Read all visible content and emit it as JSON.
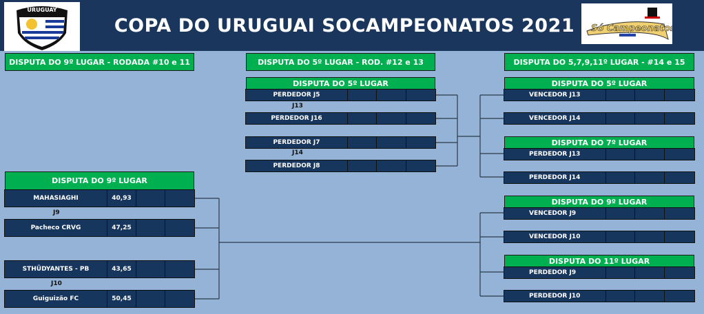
{
  "header": {
    "title": "COPA DO URUGUAI SOCAMPEONATOS 2021",
    "logo_left_text": "URUGUAY",
    "logo_right_text": "Só Campeonatos"
  },
  "sections": {
    "left": "DISPUTA DO 9º LUGAR - RODADA #10 e 11",
    "middle": "DISPUTA DO 5º LUGAR - ROD. #12 e 13",
    "right": "DISPUTA DO 5,7,9,11º LUGAR - #14 e 15"
  },
  "left_bracket": {
    "title": "DISPUTA DO 9º LUGAR",
    "games": [
      {
        "label": "J9",
        "teams": [
          {
            "name": "MAHASIAGHI",
            "score": "40,93"
          },
          {
            "name": "Pacheco CRVG",
            "score": "47,25"
          }
        ]
      },
      {
        "label": "J10",
        "teams": [
          {
            "name": "STHÜDYANTES - PB",
            "score": "43,65"
          },
          {
            "name": "Guiguizão FC",
            "score": "50,45"
          }
        ]
      }
    ]
  },
  "middle_bracket": {
    "title": "DISPUTA DO 5º LUGAR",
    "games": [
      {
        "label": "J13",
        "teams": [
          {
            "name": "PERDEDOR J5",
            "score": ""
          },
          {
            "name": "PERDEDOR J16",
            "score": ""
          }
        ]
      },
      {
        "label": "J14",
        "teams": [
          {
            "name": "PERDEDOR J7",
            "score": ""
          },
          {
            "name": "PERDEDOR J8",
            "score": ""
          }
        ]
      }
    ]
  },
  "right_bracket": [
    {
      "title": "DISPUTA DO 5º LUGAR",
      "teams": [
        "VENCEDOR J13",
        "VENCEDOR J14"
      ]
    },
    {
      "title": "DISPUTA DO 7º LUGAR",
      "teams": [
        "PERDEDOR J13",
        "PERDEDOR J14"
      ]
    },
    {
      "title": "DISPUTA DO 9º LUGAR",
      "teams": [
        "VENCEDOR J9",
        "VENCEDOR J10"
      ]
    },
    {
      "title": "DISPUTA DO 11º LUGAR",
      "teams": [
        "PERDEDOR J9",
        "PERDEDOR J10"
      ]
    }
  ],
  "colors": {
    "background": "#95b3d7",
    "header_band": "#1a365d",
    "green": "#00b050",
    "row": "#17365d"
  }
}
